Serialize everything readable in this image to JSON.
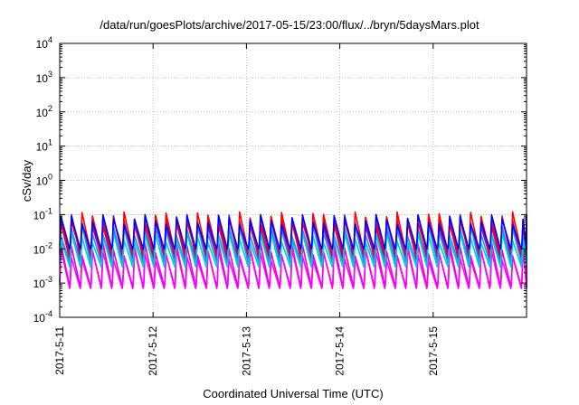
{
  "chart_data": {
    "type": "line",
    "title": "/data/run/goesPlots/archive/2017-05-15/23:00/flux/../bryn/5daysMars.plot",
    "xlabel": "Coordinated Universal Time (UTC)",
    "ylabel": "cSv/day",
    "y_scale": "log",
    "ylim": [
      0.0001,
      10000
    ],
    "y_ticks": [
      {
        "value": 0.0001,
        "base": "10",
        "exp": "-4"
      },
      {
        "value": 0.001,
        "base": "10",
        "exp": "-3"
      },
      {
        "value": 0.01,
        "base": "10",
        "exp": "-2"
      },
      {
        "value": 0.1,
        "base": "10",
        "exp": "-1"
      },
      {
        "value": 1,
        "base": "10",
        "exp": "0"
      },
      {
        "value": 10,
        "base": "10",
        "exp": "1"
      },
      {
        "value": 100,
        "base": "10",
        "exp": "2"
      },
      {
        "value": 1000,
        "base": "10",
        "exp": "3"
      },
      {
        "value": 10000,
        "base": "10",
        "exp": "4"
      }
    ],
    "xlim": [
      "2017-05-11 00:00",
      "2017-05-16 00:00"
    ],
    "x_ticks": [
      {
        "value": "2017-05-11 00:00",
        "label": "2017-5-11"
      },
      {
        "value": "2017-05-12 00:00",
        "label": "2017-5-12"
      },
      {
        "value": "2017-05-13 00:00",
        "label": "2017-5-13"
      },
      {
        "value": "2017-05-14 00:00",
        "label": "2017-5-14"
      },
      {
        "value": "2017-05-15 00:00",
        "label": "2017-5-15"
      }
    ],
    "grid": true,
    "pattern": "sawtooth",
    "pattern_period_hours": 2.7,
    "series": [
      {
        "color": "#9400d3",
        "high": 0.1,
        "low": 0.006
      },
      {
        "color": "#e000e0",
        "high": 0.015,
        "low": 0.0008
      },
      {
        "color": "#ff00ff",
        "high": 0.01,
        "low": 0.0007
      },
      {
        "color": "#cc0066",
        "high": 0.08,
        "low": 0.005
      },
      {
        "color": "#ff0000",
        "high": 0.12,
        "low": 0.008
      },
      {
        "color": "#1e90ff",
        "high": 0.05,
        "low": 0.004
      },
      {
        "color": "#00cdcd",
        "high": 0.03,
        "low": 0.003
      },
      {
        "color": "#0000ff",
        "high": 0.1,
        "low": 0.01
      }
    ]
  }
}
